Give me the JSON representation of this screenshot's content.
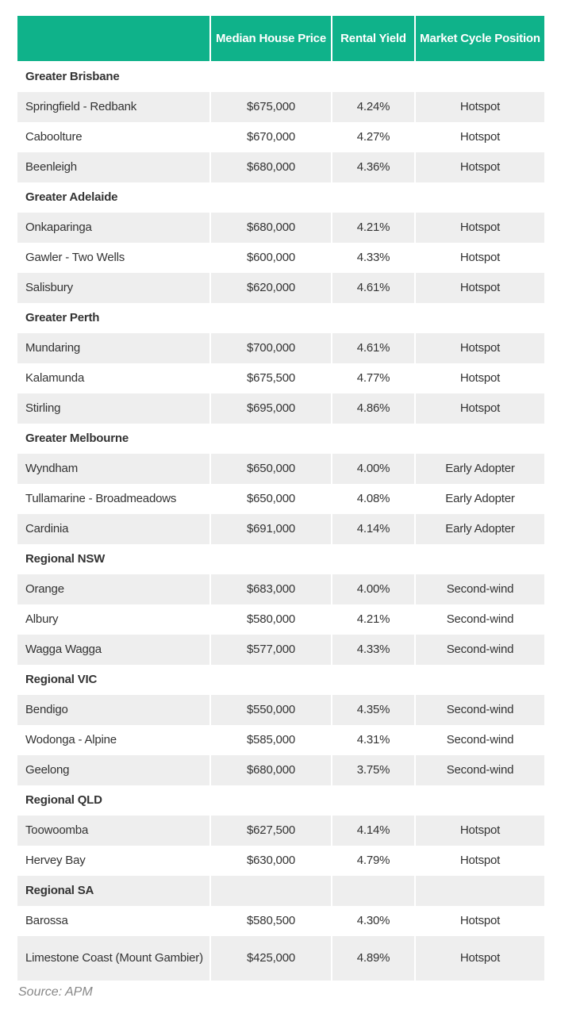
{
  "header": {
    "columns": [
      "",
      "Median House Price",
      "Rental Yield",
      "Market Cycle Position"
    ]
  },
  "colors": {
    "header_bg": "#0fb28a",
    "alt_row_bg": "#eeeeee"
  },
  "groups": [
    {
      "name": "Greater Brisbane",
      "rows": [
        [
          "Springfield - Redbank",
          "$675,000",
          "4.24%",
          "Hotspot"
        ],
        [
          "Caboolture",
          "$670,000",
          "4.27%",
          "Hotspot"
        ],
        [
          "Beenleigh",
          "$680,000",
          "4.36%",
          "Hotspot"
        ]
      ]
    },
    {
      "name": "Greater Adelaide",
      "rows": [
        [
          "Onkaparinga",
          "$680,000",
          "4.21%",
          "Hotspot"
        ],
        [
          "Gawler - Two Wells",
          "$600,000",
          "4.33%",
          "Hotspot"
        ],
        [
          "Salisbury",
          "$620,000",
          "4.61%",
          "Hotspot"
        ]
      ]
    },
    {
      "name": "Greater Perth",
      "rows": [
        [
          "Mundaring",
          "$700,000",
          "4.61%",
          "Hotspot"
        ],
        [
          "Kalamunda",
          "$675,500",
          "4.77%",
          "Hotspot"
        ],
        [
          "Stirling",
          "$695,000",
          "4.86%",
          "Hotspot"
        ]
      ]
    },
    {
      "name": "Greater Melbourne",
      "rows": [
        [
          "Wyndham",
          "$650,000",
          "4.00%",
          "Early Adopter"
        ],
        [
          "Tullamarine - Broadmeadows",
          "$650,000",
          "4.08%",
          "Early Adopter"
        ],
        [
          "Cardinia",
          "$691,000",
          "4.14%",
          "Early Adopter"
        ]
      ]
    },
    {
      "name": "Regional NSW",
      "rows": [
        [
          "Orange",
          "$683,000",
          "4.00%",
          "Second-wind"
        ],
        [
          "Albury",
          "$580,000",
          "4.21%",
          "Second-wind"
        ],
        [
          "Wagga Wagga",
          "$577,000",
          "4.33%",
          "Second-wind"
        ]
      ]
    },
    {
      "name": "Regional VIC",
      "rows": [
        [
          "Bendigo",
          "$550,000",
          "4.35%",
          "Second-wind"
        ],
        [
          "Wodonga - Alpine",
          "$585,000",
          "4.31%",
          "Second-wind"
        ],
        [
          "Geelong",
          "$680,000",
          "3.75%",
          "Second-wind"
        ]
      ]
    },
    {
      "name": "Regional QLD",
      "rows": [
        [
          "Toowoomba",
          "$627,500",
          "4.14%",
          "Hotspot"
        ],
        [
          "Hervey Bay",
          "$630,000",
          "4.79%",
          "Hotspot"
        ]
      ]
    },
    {
      "name": "Regional SA",
      "rows": [
        [
          "Barossa",
          "$580,500",
          "4.30%",
          "Hotspot"
        ],
        [
          "Limestone Coast (Mount Gambier)",
          "$425,000",
          "4.89%",
          "Hotspot"
        ]
      ]
    }
  ],
  "source": "Source: APM"
}
